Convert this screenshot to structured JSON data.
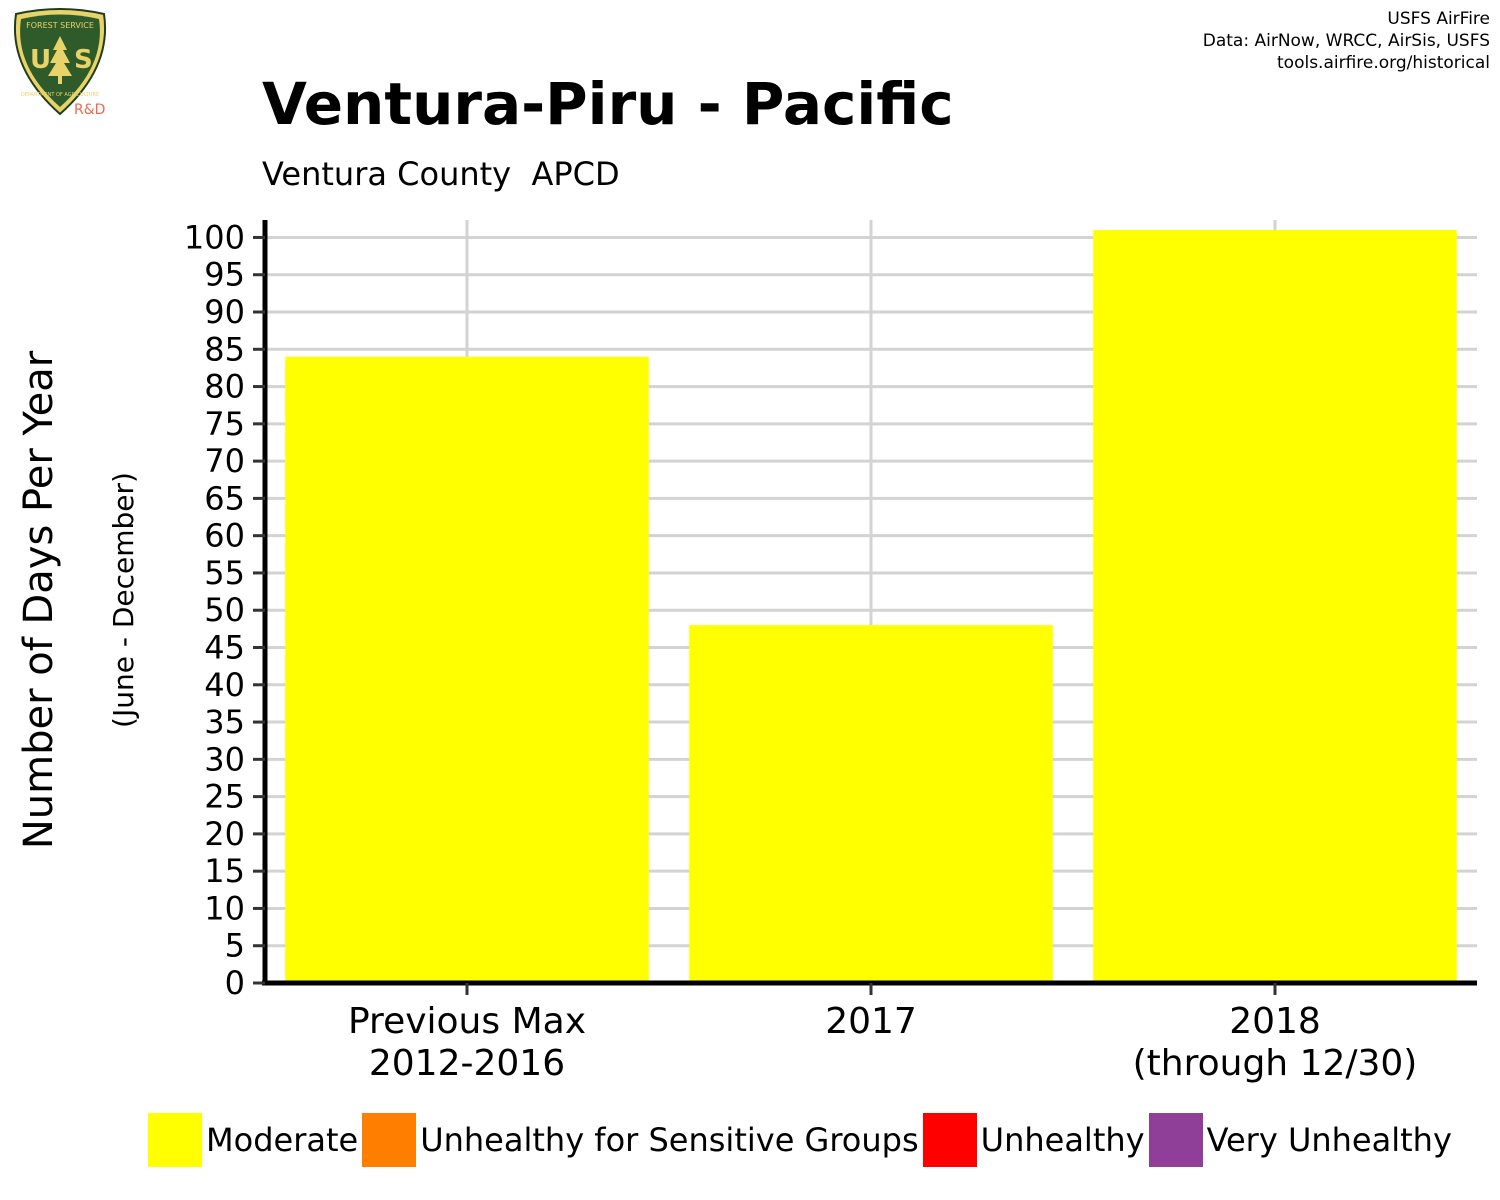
{
  "header": {
    "credit_lines": [
      "USFS AirFire",
      "Data: AirNow, WRCC, AirSis, USFS",
      "tools.airfire.org/historical"
    ],
    "logo": {
      "icon": "usfs-shield-icon",
      "text": "FOREST SERVICE U S DEPARTMENT OF AGRICULTURE",
      "badge": "R&D",
      "green": "#2f5a2a",
      "gold": "#e8d36a",
      "badge_color": "#ee6a50"
    },
    "title": "Ventura-Piru - Pacific",
    "subtitle": "Ventura County  APCD"
  },
  "chart_data": {
    "type": "bar",
    "title": "Ventura-Piru - Pacific",
    "subtitle": "Ventura County  APCD",
    "ylabel": "Number of Days Per Year",
    "ylabel_secondary": "(June - December)",
    "categories": [
      [
        "Previous Max",
        "2012-2016"
      ],
      [
        "2017"
      ],
      [
        "2018",
        "(through 12/30)"
      ]
    ],
    "series": [
      {
        "name": "Moderate",
        "color": "#ffff00",
        "values": [
          84,
          48,
          101
        ]
      }
    ],
    "ylim": [
      0,
      101
    ],
    "y_ticks": [
      0,
      5,
      10,
      15,
      20,
      25,
      30,
      35,
      40,
      45,
      50,
      55,
      60,
      65,
      70,
      75,
      80,
      85,
      90,
      95,
      100
    ],
    "grid": true,
    "legend_position": "bottom"
  },
  "legend": [
    {
      "label": "Moderate",
      "color": "#ffff00"
    },
    {
      "label": "Unhealthy for Sensitive Groups",
      "color": "#ff7e00"
    },
    {
      "label": "Unhealthy",
      "color": "#ff0000"
    },
    {
      "label": "Very Unhealthy",
      "color": "#8f3f97"
    }
  ]
}
